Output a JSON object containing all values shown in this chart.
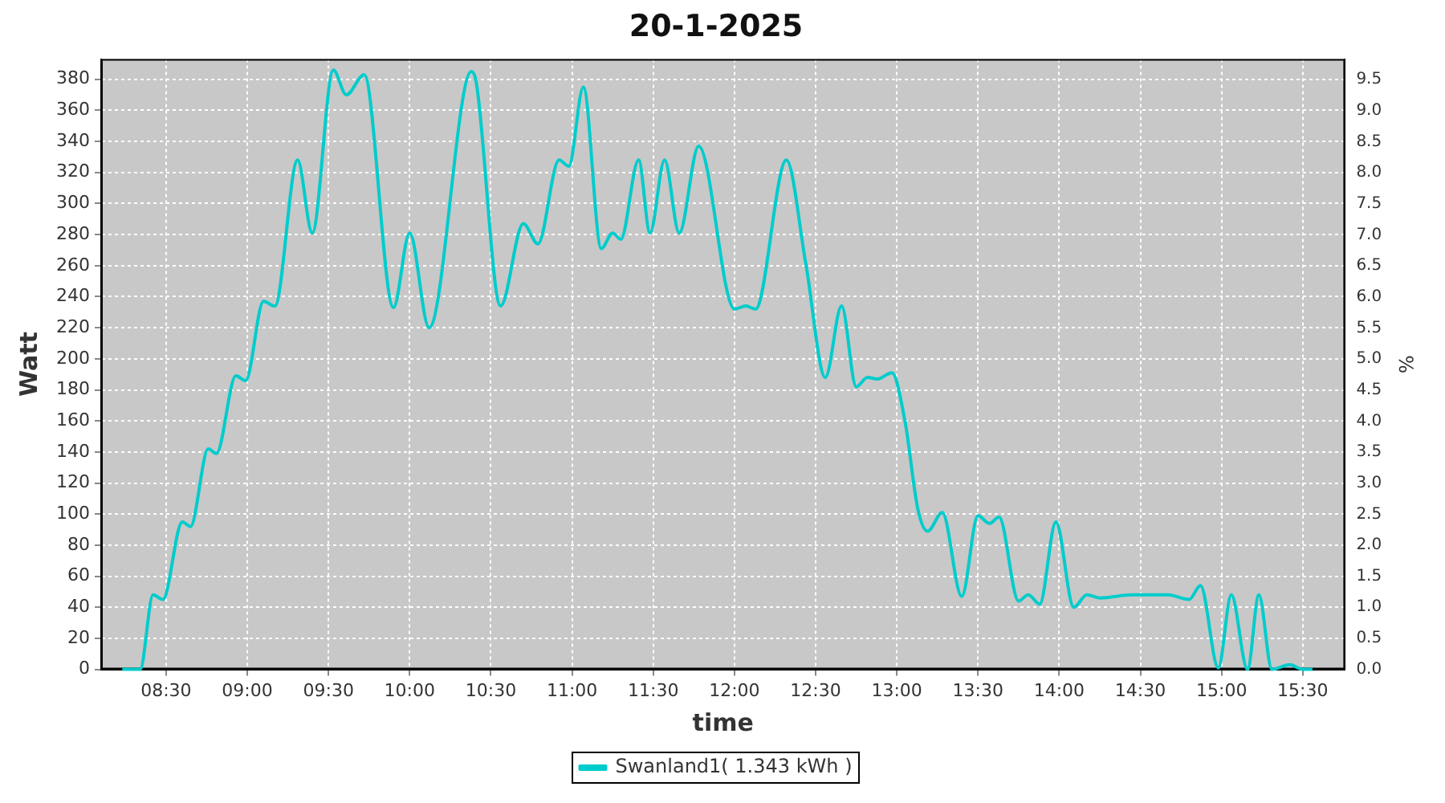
{
  "chart_data": {
    "type": "line",
    "title": "20-1-2025",
    "xlabel": "time",
    "ylabel": "Watt",
    "y2label": "%",
    "series": [
      {
        "name": "Swanland1( 1.343 kWh )",
        "color": "#00cccc",
        "x": [
          8.23,
          8.34,
          8.42,
          8.48,
          8.6,
          8.65,
          8.76,
          8.81,
          8.93,
          8.99,
          9.1,
          9.17,
          9.31,
          9.4,
          9.53,
          9.61,
          9.72,
          9.9,
          10.0,
          10.12,
          10.38,
          10.41,
          10.56,
          10.7,
          10.79,
          10.92,
          10.98,
          11.07,
          11.18,
          11.25,
          11.3,
          11.41,
          11.48,
          11.57,
          11.66,
          11.78,
          12.0,
          12.07,
          12.13,
          12.32,
          12.44,
          12.56,
          12.66,
          12.75,
          12.82,
          12.88,
          12.97,
          13.05,
          13.13,
          13.19,
          13.28,
          13.4,
          13.5,
          13.57,
          13.63,
          13.75,
          13.81,
          13.88,
          13.98,
          14.09,
          14.17,
          14.25,
          14.45,
          14.67,
          14.8,
          14.87,
          14.98,
          15.06,
          15.16,
          15.23,
          15.31,
          15.42,
          15.5,
          15.56
        ],
        "values": [
          0,
          0,
          48,
          45,
          95,
          92,
          142,
          139,
          189,
          186,
          237,
          234,
          328,
          281,
          386,
          370,
          383,
          233,
          281,
          220,
          385,
          378,
          234,
          287,
          274,
          328,
          324,
          375,
          271,
          281,
          277,
          328,
          281,
          328,
          281,
          337,
          232,
          234,
          232,
          328,
          261,
          188,
          234,
          182,
          188,
          187,
          191,
          160,
          103,
          89,
          101,
          47,
          99,
          94,
          98,
          44,
          48,
          42,
          95,
          40,
          48,
          46,
          48,
          48,
          45,
          54,
          1,
          48,
          0,
          48,
          0,
          3,
          0,
          0
        ]
      }
    ],
    "xlim": [
      8.1,
      15.76
    ],
    "xticks": [
      {
        "value": 8.5,
        "label": "08:30"
      },
      {
        "value": 9,
        "label": "09:00"
      },
      {
        "value": 9.5,
        "label": "09:30"
      },
      {
        "value": 10,
        "label": "10:00"
      },
      {
        "value": 10.5,
        "label": "10:30"
      },
      {
        "value": 11,
        "label": "11:00"
      },
      {
        "value": 11.5,
        "label": "11:30"
      },
      {
        "value": 12,
        "label": "12:00"
      },
      {
        "value": 12.5,
        "label": "12:30"
      },
      {
        "value": 13,
        "label": "13:00"
      },
      {
        "value": 13.5,
        "label": "13:30"
      },
      {
        "value": 14,
        "label": "14:00"
      },
      {
        "value": 14.5,
        "label": "14:30"
      },
      {
        "value": 15,
        "label": "15:00"
      },
      {
        "value": 15.5,
        "label": "15:30"
      }
    ],
    "ylim": [
      0,
      393
    ],
    "yticks": [
      0,
      20,
      40,
      60,
      80,
      100,
      120,
      140,
      160,
      180,
      200,
      220,
      240,
      260,
      280,
      300,
      320,
      340,
      360,
      380
    ],
    "y2lim": [
      0,
      9.83
    ],
    "y2ticks": [
      {
        "value": 0,
        "label": "0.0"
      },
      0.5,
      {
        "value": 1,
        "label": "1.0"
      },
      1.5,
      {
        "value": 2,
        "label": "2.0"
      },
      2.5,
      {
        "value": 3,
        "label": "3.0"
      },
      3.5,
      {
        "value": 4,
        "label": "4.0"
      },
      4.5,
      {
        "value": 5,
        "label": "5.0"
      },
      5.5,
      {
        "value": 6,
        "label": "6.0"
      },
      6.5,
      {
        "value": 7,
        "label": "7.0"
      },
      7.5,
      {
        "value": 8,
        "label": "8.0"
      },
      8.5,
      {
        "value": 9,
        "label": "9.0"
      },
      9.5
    ],
    "grid": true,
    "legend": "bottom",
    "marker": "none",
    "line_style": "solid"
  }
}
